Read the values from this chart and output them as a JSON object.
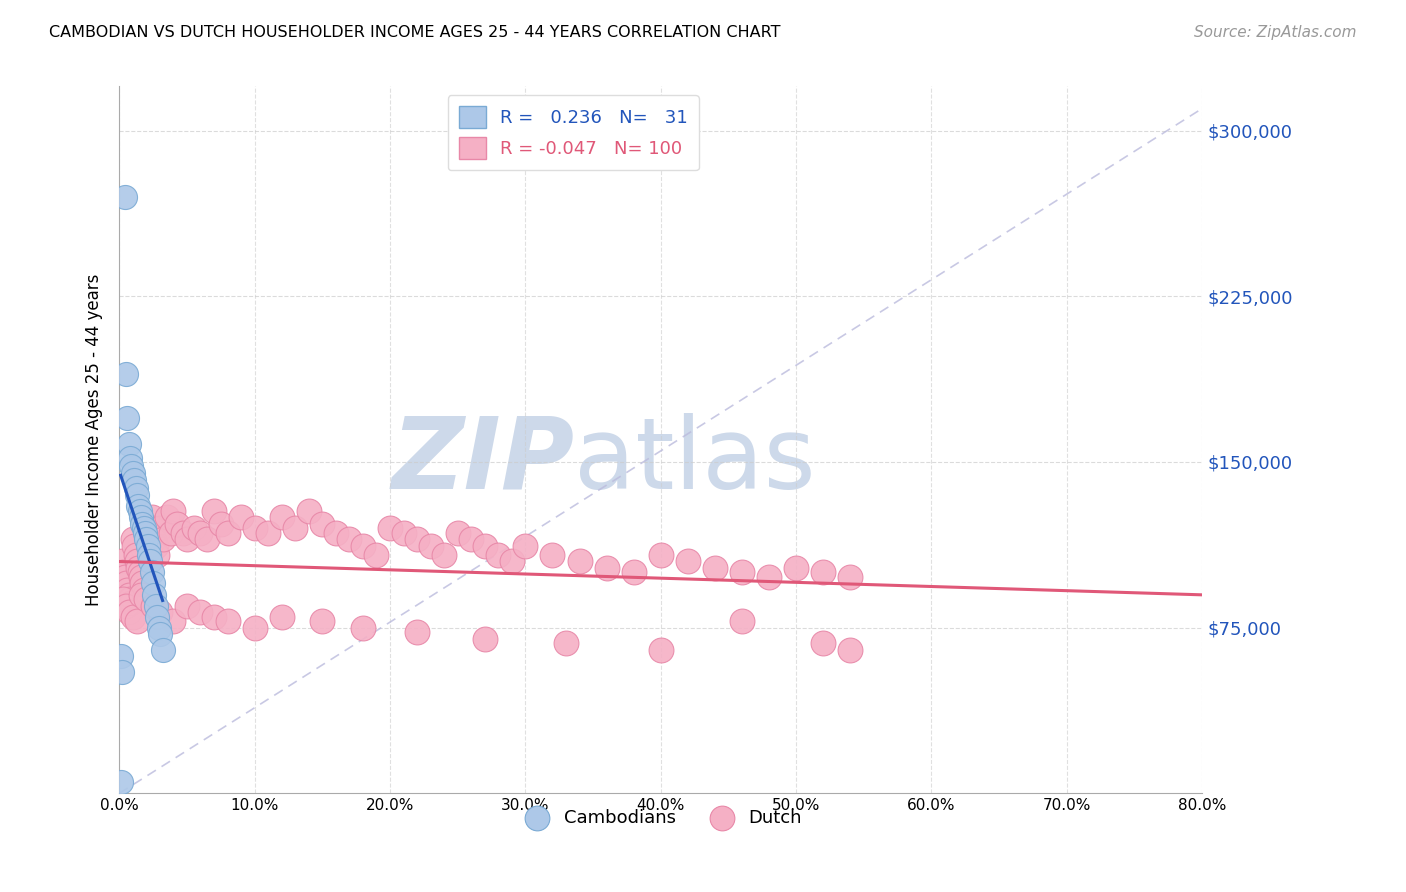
{
  "title": "CAMBODIAN VS DUTCH HOUSEHOLDER INCOME AGES 25 - 44 YEARS CORRELATION CHART",
  "source": "Source: ZipAtlas.com",
  "ylabel": "Householder Income Ages 25 - 44 years",
  "yticks": [
    0,
    75000,
    150000,
    225000,
    300000
  ],
  "ytick_labels": [
    "",
    "$75,000",
    "$150,000",
    "$225,000",
    "$300,000"
  ],
  "xlim": [
    0.0,
    0.8
  ],
  "ylim": [
    0,
    320000
  ],
  "cambodian_R": 0.236,
  "cambodian_N": 31,
  "dutch_R": -0.047,
  "dutch_N": 100,
  "cambodian_color": "#adc8e8",
  "cambodian_edge": "#7aaad4",
  "cambodian_line_color": "#2255bb",
  "dutch_color": "#f5b0c5",
  "dutch_edge": "#e888a8",
  "dutch_line_color": "#e05878",
  "watermark_zip": "ZIP",
  "watermark_atlas": "atlas",
  "watermark_color": "#cdd9ea",
  "background_color": "#ffffff",
  "grid_color": "#cccccc",
  "cambodian_x": [
    0.001,
    0.004,
    0.005,
    0.006,
    0.007,
    0.008,
    0.009,
    0.01,
    0.011,
    0.012,
    0.013,
    0.014,
    0.015,
    0.016,
    0.017,
    0.018,
    0.019,
    0.02,
    0.021,
    0.022,
    0.023,
    0.024,
    0.025,
    0.026,
    0.027,
    0.028,
    0.029,
    0.03,
    0.032,
    0.001,
    0.002
  ],
  "cambodian_y": [
    5000,
    270000,
    190000,
    170000,
    158000,
    152000,
    148000,
    145000,
    142000,
    138000,
    135000,
    130000,
    128000,
    125000,
    122000,
    120000,
    118000,
    115000,
    112000,
    108000,
    105000,
    100000,
    95000,
    90000,
    85000,
    80000,
    75000,
    72000,
    65000,
    62000,
    55000
  ],
  "dutch_x": [
    0.002,
    0.003,
    0.004,
    0.005,
    0.006,
    0.007,
    0.008,
    0.009,
    0.01,
    0.011,
    0.012,
    0.013,
    0.014,
    0.015,
    0.016,
    0.017,
    0.018,
    0.019,
    0.02,
    0.021,
    0.022,
    0.023,
    0.024,
    0.025,
    0.026,
    0.027,
    0.028,
    0.03,
    0.032,
    0.035,
    0.038,
    0.04,
    0.043,
    0.047,
    0.05,
    0.055,
    0.06,
    0.065,
    0.07,
    0.075,
    0.08,
    0.09,
    0.1,
    0.11,
    0.12,
    0.13,
    0.14,
    0.15,
    0.16,
    0.17,
    0.18,
    0.19,
    0.2,
    0.21,
    0.22,
    0.23,
    0.24,
    0.25,
    0.26,
    0.27,
    0.28,
    0.29,
    0.3,
    0.32,
    0.34,
    0.36,
    0.38,
    0.4,
    0.42,
    0.44,
    0.46,
    0.48,
    0.5,
    0.52,
    0.54,
    0.003,
    0.005,
    0.007,
    0.01,
    0.013,
    0.016,
    0.02,
    0.025,
    0.03,
    0.04,
    0.05,
    0.06,
    0.07,
    0.08,
    0.1,
    0.12,
    0.15,
    0.18,
    0.22,
    0.27,
    0.33,
    0.4,
    0.46,
    0.52,
    0.54
  ],
  "dutch_y": [
    105000,
    100000,
    98000,
    95000,
    92000,
    90000,
    88000,
    86000,
    115000,
    112000,
    108000,
    105000,
    102000,
    100000,
    98000,
    95000,
    92000,
    90000,
    118000,
    115000,
    112000,
    108000,
    125000,
    120000,
    115000,
    112000,
    108000,
    120000,
    115000,
    125000,
    118000,
    128000,
    122000,
    118000,
    115000,
    120000,
    118000,
    115000,
    128000,
    122000,
    118000,
    125000,
    120000,
    118000,
    125000,
    120000,
    128000,
    122000,
    118000,
    115000,
    112000,
    108000,
    120000,
    118000,
    115000,
    112000,
    108000,
    118000,
    115000,
    112000,
    108000,
    105000,
    112000,
    108000,
    105000,
    102000,
    100000,
    108000,
    105000,
    102000,
    100000,
    98000,
    102000,
    100000,
    98000,
    88000,
    85000,
    82000,
    80000,
    78000,
    90000,
    88000,
    85000,
    82000,
    78000,
    85000,
    82000,
    80000,
    78000,
    75000,
    80000,
    78000,
    75000,
    73000,
    70000,
    68000,
    65000,
    78000,
    68000,
    65000
  ]
}
